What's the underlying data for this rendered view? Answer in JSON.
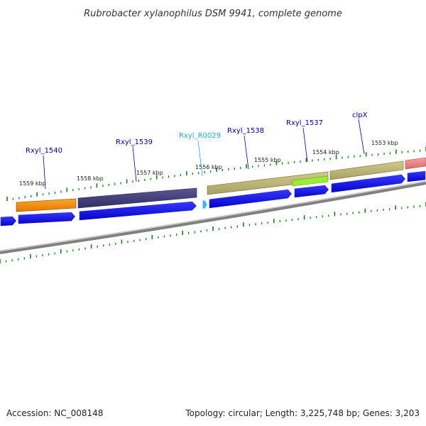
{
  "title": "Rubrobacter xylanophilus DSM 9941, complete genome",
  "footer": {
    "accession": "Accession: NC_008148",
    "summary": "Topology: circular; Length: 3,225,748 bp; Genes: 3,203"
  },
  "ruler_labels": [
    {
      "id": "kbp-1559",
      "text": "1559 kbp"
    },
    {
      "id": "kbp-1558",
      "text": "1558 kbp"
    },
    {
      "id": "kbp-1557",
      "text": "1557 kbp"
    },
    {
      "id": "kbp-1556",
      "text": "1556 kbp"
    },
    {
      "id": "kbp-1555",
      "text": "1555 kbp"
    },
    {
      "id": "kbp-1554",
      "text": "1554 kbp"
    },
    {
      "id": "kbp-1553",
      "text": "1553 kbp"
    }
  ],
  "gene_labels": [
    {
      "id": "rxyl-1540",
      "text": "Rxyl_1540",
      "color": "#0000aa"
    },
    {
      "id": "rxyl-1539",
      "text": "Rxyl_1539",
      "color": "#0000aa"
    },
    {
      "id": "rxyl-r0029",
      "text": "Rxyl_R0029",
      "color": "#22a6d6"
    },
    {
      "id": "rxyl-1538",
      "text": "Rxyl_1538",
      "color": "#0000aa"
    },
    {
      "id": "rxyl-1537",
      "text": "Rxyl_1537",
      "color": "#0000aa"
    },
    {
      "id": "clpx",
      "text": "clpX",
      "color": "#0000aa"
    }
  ],
  "colors": {
    "cds_arrow": "#0000ee",
    "rna_arrow": "#33bbee",
    "tick_mark": "#1f7a1f",
    "backbone": "#7a7a7a",
    "feature_orange": "#ff8c00",
    "feature_navy": "#3f3b7a",
    "feature_khaki": "#bdb575",
    "feature_lime": "#99ee33",
    "feature_pink": "#f08080"
  }
}
